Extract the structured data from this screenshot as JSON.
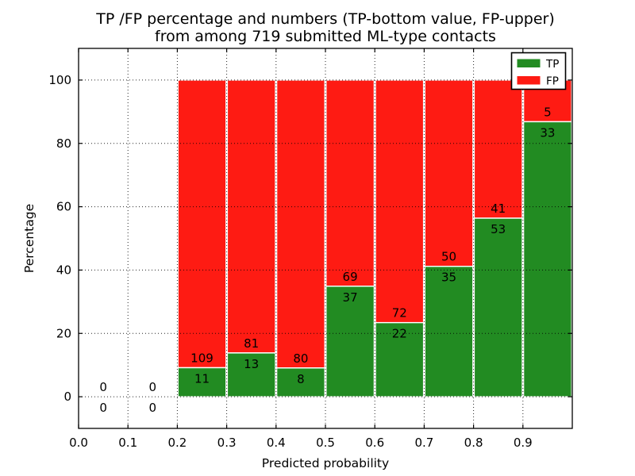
{
  "title": {
    "line1": "TP /FP percentage and numbers (TP-bottom value, FP-upper)",
    "line2": "from among 719 submitted ML-type contacts"
  },
  "chart_data": {
    "type": "bar",
    "stacked": true,
    "title": "TP /FP percentage and numbers (TP-bottom value, FP-upper) from among 719 submitted ML-type contacts",
    "xlabel": "Predicted probability",
    "ylabel": "Percentage",
    "xlim": [
      0.0,
      1.0
    ],
    "ylim": [
      -10,
      110
    ],
    "xticks": [
      "0.0",
      "0.1",
      "0.2",
      "0.3",
      "0.4",
      "0.5",
      "0.6",
      "0.7",
      "0.8",
      "0.9"
    ],
    "yticks": [
      "0",
      "20",
      "40",
      "60",
      "80",
      "100"
    ],
    "grid": "dotted",
    "total_contacts": 719,
    "legend": {
      "position": "upper right",
      "entries": [
        {
          "label": "TP",
          "color": "#228b22"
        },
        {
          "label": "FP",
          "color": "#fe1b13"
        }
      ]
    },
    "colors": {
      "tp": "#228b22",
      "fp": "#fe1b13",
      "bar_edge": "#ffffff",
      "grid": "#000000",
      "frame": "#000000"
    },
    "bins": [
      {
        "range": [
          0.0,
          0.1
        ],
        "tp": 0,
        "fp": 0
      },
      {
        "range": [
          0.1,
          0.2
        ],
        "tp": 0,
        "fp": 0
      },
      {
        "range": [
          0.2,
          0.3
        ],
        "tp": 11,
        "fp": 109
      },
      {
        "range": [
          0.3,
          0.4
        ],
        "tp": 13,
        "fp": 81
      },
      {
        "range": [
          0.4,
          0.5
        ],
        "tp": 8,
        "fp": 80
      },
      {
        "range": [
          0.5,
          0.6
        ],
        "tp": 37,
        "fp": 69
      },
      {
        "range": [
          0.6,
          0.7
        ],
        "tp": 22,
        "fp": 72
      },
      {
        "range": [
          0.7,
          0.8
        ],
        "tp": 35,
        "fp": 50
      },
      {
        "range": [
          0.8,
          0.9
        ],
        "tp": 53,
        "fp": 41
      },
      {
        "range": [
          0.9,
          1.0
        ],
        "tp": 33,
        "fp": 5
      }
    ]
  }
}
